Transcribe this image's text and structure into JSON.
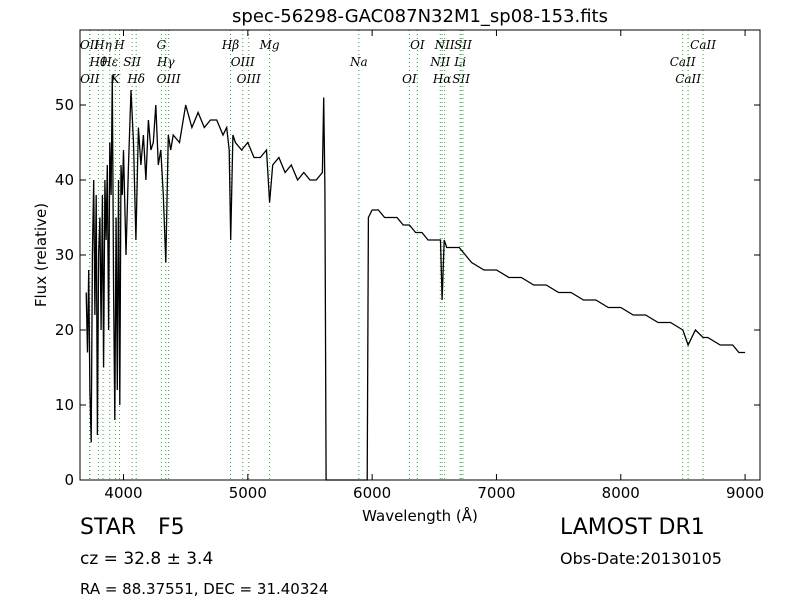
{
  "chart_data": {
    "type": "line",
    "title": "spec-56298-GAC087N32M1_sp08-153.fits",
    "xlabel": "Wavelength (Å)",
    "ylabel": "Flux (relative)",
    "xlim": [
      3650,
      9120
    ],
    "ylim": [
      0,
      60
    ],
    "xticks": [
      4000,
      5000,
      6000,
      7000,
      8000,
      9000
    ],
    "yticks": [
      0,
      10,
      20,
      30,
      40,
      50
    ],
    "color": "#000000",
    "line_color": "#33aa33",
    "x": [
      3700,
      3710,
      3720,
      3730,
      3740,
      3750,
      3760,
      3770,
      3780,
      3790,
      3800,
      3810,
      3820,
      3830,
      3840,
      3850,
      3860,
      3870,
      3880,
      3890,
      3900,
      3910,
      3920,
      3930,
      3940,
      3950,
      3960,
      3970,
      3980,
      3990,
      4000,
      4020,
      4040,
      4060,
      4080,
      4100,
      4120,
      4140,
      4160,
      4180,
      4200,
      4220,
      4240,
      4260,
      4280,
      4300,
      4320,
      4340,
      4360,
      4380,
      4400,
      4450,
      4500,
      4550,
      4600,
      4650,
      4700,
      4750,
      4800,
      4830,
      4850,
      4862,
      4880,
      4900,
      4950,
      5000,
      5050,
      5100,
      5150,
      5175,
      5200,
      5250,
      5300,
      5350,
      5400,
      5450,
      5500,
      5550,
      5600,
      5610,
      5620,
      5630,
      5700,
      5800,
      5900,
      5960,
      5970,
      6000,
      6050,
      6100,
      6150,
      6200,
      6250,
      6300,
      6350,
      6400,
      6450,
      6500,
      6550,
      6563,
      6580,
      6600,
      6650,
      6700,
      6750,
      6800,
      6900,
      7000,
      7100,
      7200,
      7300,
      7400,
      7500,
      7600,
      7700,
      7800,
      7900,
      8000,
      8100,
      8200,
      8300,
      8400,
      8500,
      8542,
      8600,
      8662,
      8700,
      8800,
      8900,
      8950,
      9000
    ],
    "values": [
      25,
      17,
      28,
      12,
      5,
      30,
      40,
      22,
      38,
      6,
      30,
      35,
      20,
      38,
      15,
      40,
      32,
      42,
      20,
      45,
      38,
      54,
      25,
      8,
      35,
      12,
      40,
      10,
      42,
      38,
      44,
      30,
      42,
      52,
      45,
      32,
      47,
      42,
      46,
      40,
      48,
      44,
      45,
      50,
      42,
      44,
      38,
      29,
      46,
      44,
      46,
      45,
      50,
      47,
      49,
      47,
      48,
      48,
      46,
      47,
      44,
      32,
      46,
      45,
      44,
      45,
      43,
      43,
      44,
      37,
      42,
      43,
      41,
      42,
      40,
      41,
      40,
      40,
      41,
      51,
      39,
      0,
      0,
      0,
      0,
      0,
      35,
      36,
      36,
      35,
      35,
      35,
      34,
      34,
      33,
      33,
      32,
      32,
      32,
      24,
      32,
      31,
      31,
      31,
      30,
      29,
      28,
      28,
      27,
      27,
      26,
      26,
      25,
      25,
      24,
      24,
      23,
      23,
      22,
      22,
      21,
      21,
      20,
      18,
      20,
      19,
      19,
      18,
      18,
      17,
      17
    ],
    "lines": [
      {
        "label": "OII",
        "wavelength": 3727
      },
      {
        "label": "Hθ",
        "wavelength": 3798
      },
      {
        "label": "OII",
        "wavelength": 3729
      },
      {
        "label": "Hη",
        "wavelength": 3835
      },
      {
        "label": "Hε",
        "wavelength": 3889
      },
      {
        "label": "K",
        "wavelength": 3934
      },
      {
        "label": "H",
        "wavelength": 3968
      },
      {
        "label": "SII",
        "wavelength": 4069
      },
      {
        "label": "Hδ",
        "wavelength": 4102
      },
      {
        "label": "G",
        "wavelength": 4305
      },
      {
        "label": "Hγ",
        "wavelength": 4340
      },
      {
        "label": "OIII",
        "wavelength": 4363
      },
      {
        "label": "Hβ",
        "wavelength": 4861
      },
      {
        "label": "OIII",
        "wavelength": 4959
      },
      {
        "label": "OIII",
        "wavelength": 5007
      },
      {
        "label": "Mg",
        "wavelength": 5175
      },
      {
        "label": "Na",
        "wavelength": 5893
      },
      {
        "label": "OI",
        "wavelength": 6300
      },
      {
        "label": "OI",
        "wavelength": 6364
      },
      {
        "label": "NII",
        "wavelength": 6548
      },
      {
        "label": "Hα",
        "wavelength": 6563
      },
      {
        "label": "NII",
        "wavelength": 6583
      },
      {
        "label": "Li",
        "wavelength": 6708
      },
      {
        "label": "SII",
        "wavelength": 6716
      },
      {
        "label": "SII",
        "wavelength": 6731
      },
      {
        "label": "CaII",
        "wavelength": 8498
      },
      {
        "label": "CaII",
        "wavelength": 8542
      },
      {
        "label": "CaII",
        "wavelength": 8662
      }
    ],
    "object_class": "STAR",
    "subclass": "F5",
    "redshift": "cz = 32.8 ± 3.4",
    "coordinates": "RA = 88.37551, DEC = 31.40324",
    "survey": "LAMOST DR1",
    "obs_date": "Obs-Date:20130105"
  }
}
